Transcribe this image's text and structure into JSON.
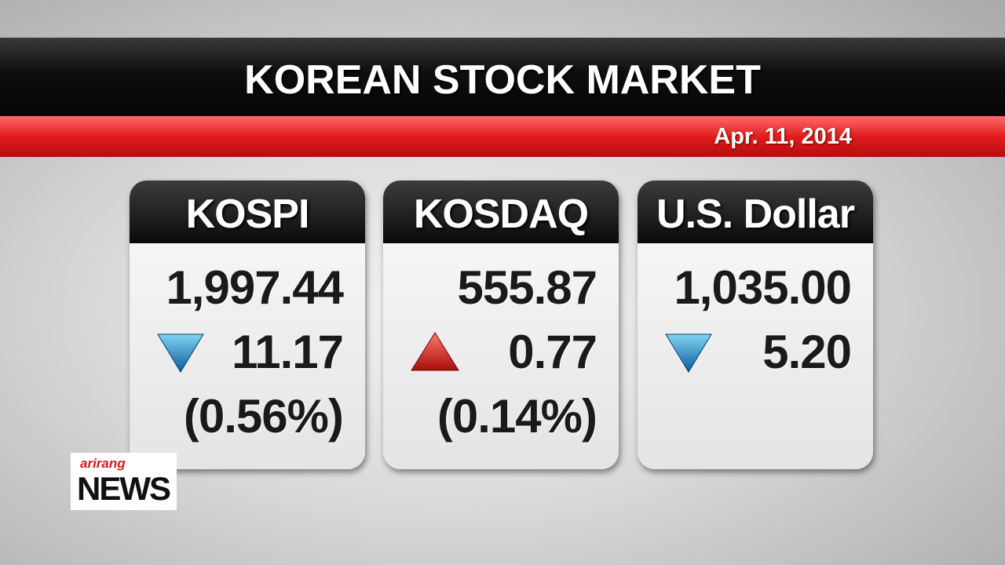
{
  "header": {
    "title": "KOREAN STOCK MARKET",
    "date": "Apr. 11, 2014"
  },
  "panels": [
    {
      "name": "KOSPI",
      "value": "1,997.44",
      "change": "11.17",
      "percent": "(0.56%)"
    },
    {
      "name": "KOSDAQ",
      "value": "555.87",
      "change": "0.77",
      "percent": "(0.14%)"
    },
    {
      "name": "U.S. Dollar",
      "value": "1,035.00",
      "change": "5.20"
    }
  ],
  "logo": {
    "brand": "arirang",
    "name": "NEWS"
  }
}
